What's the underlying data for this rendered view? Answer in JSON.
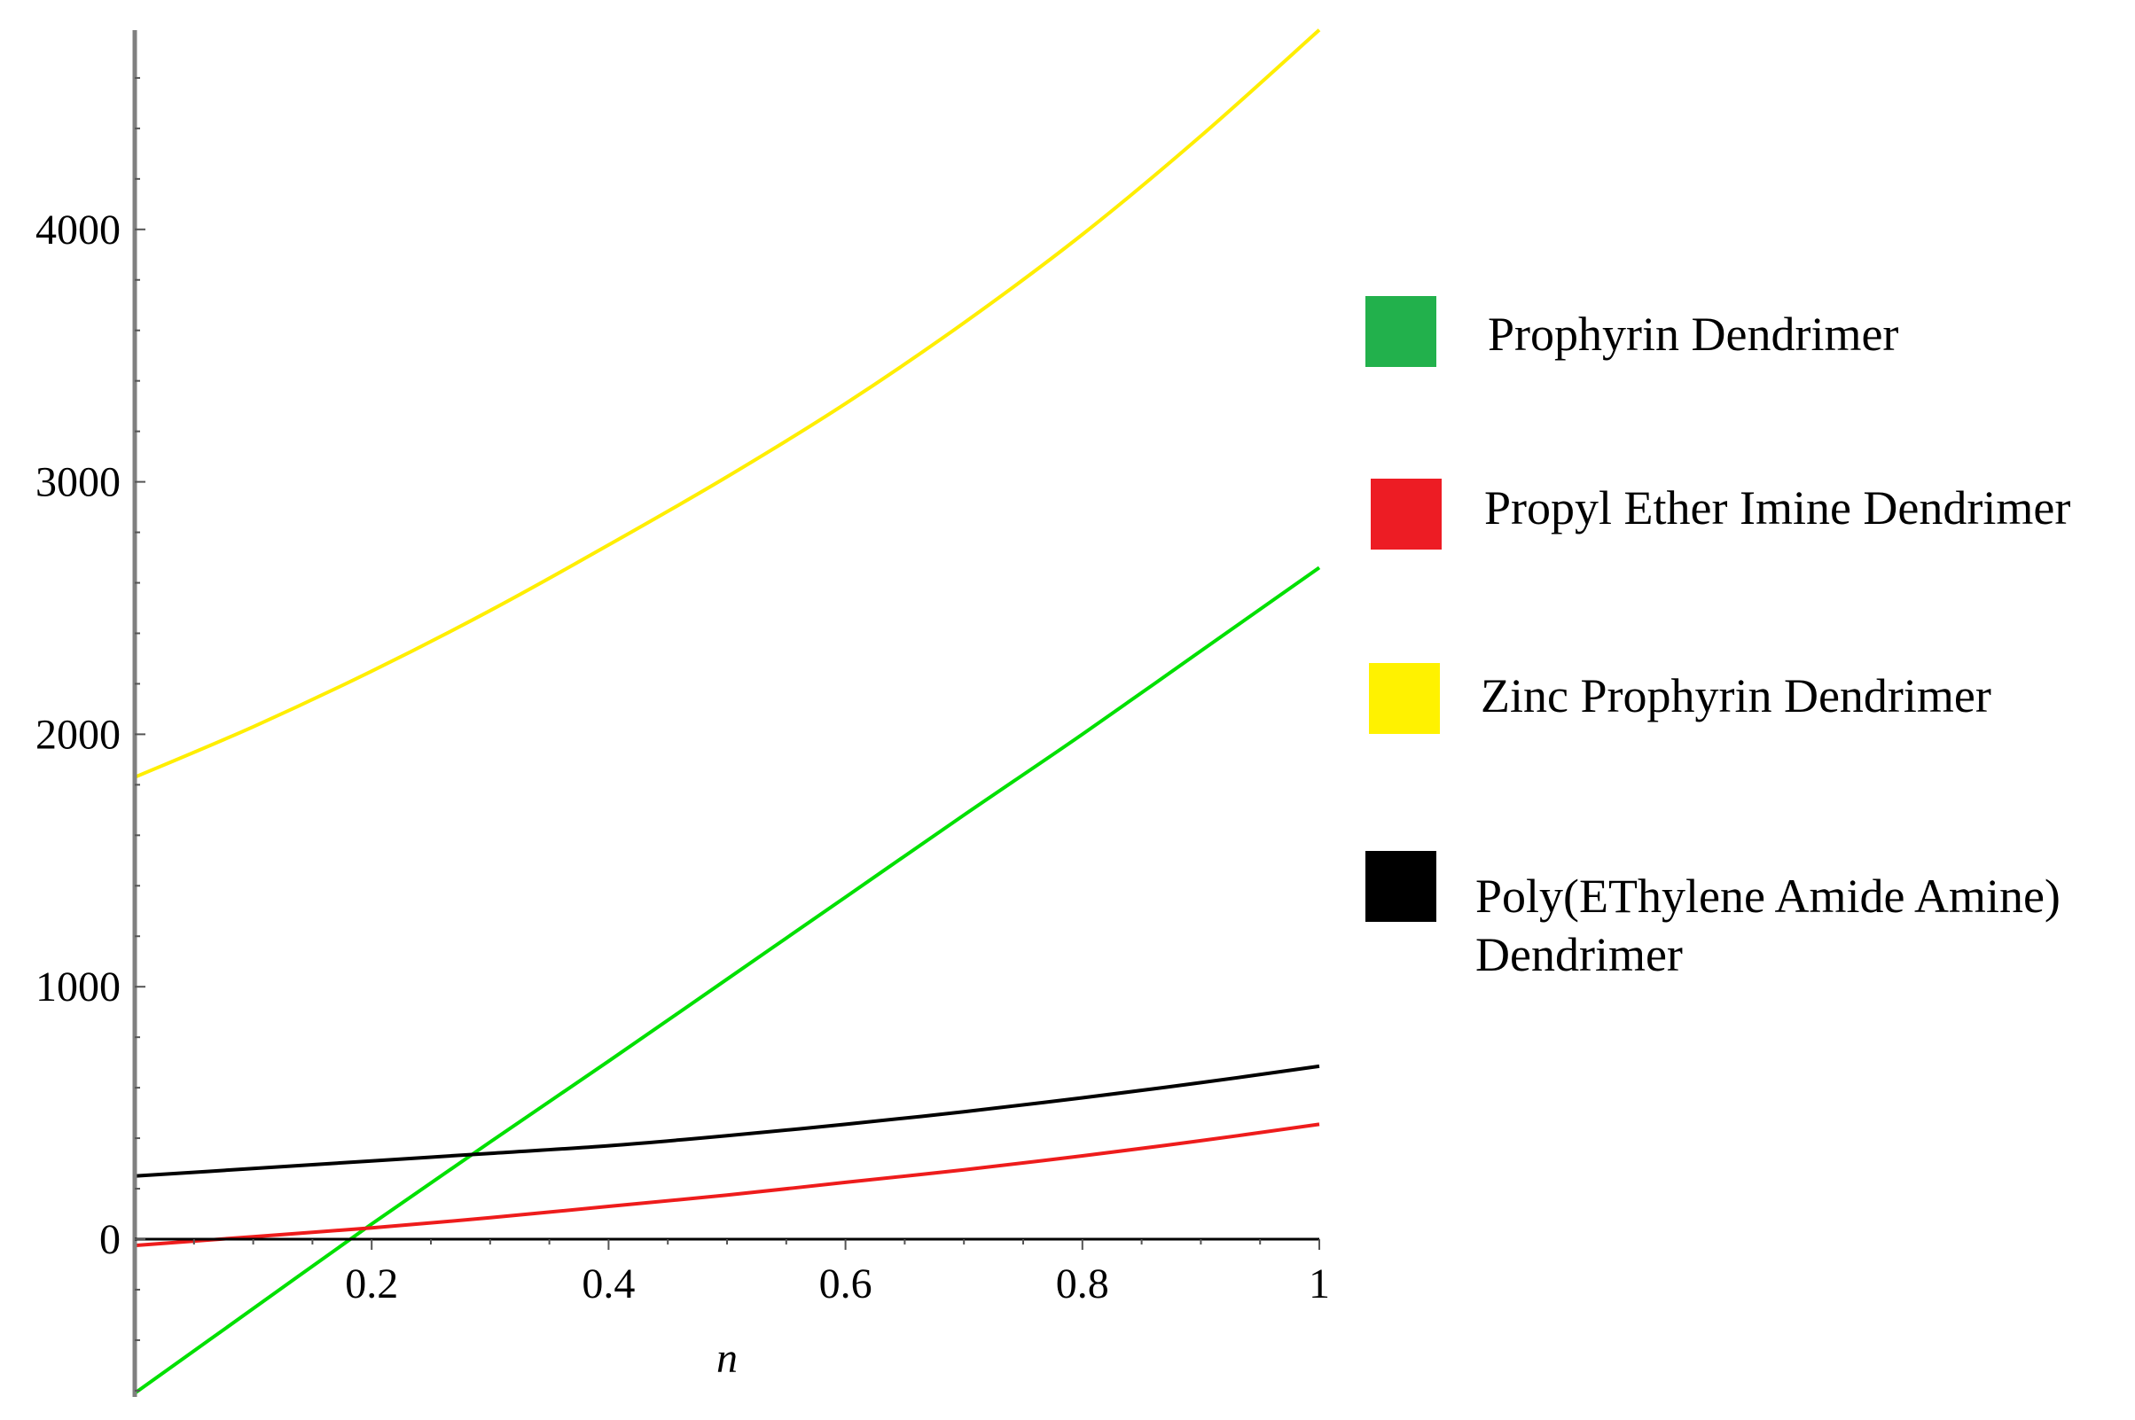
{
  "chart_data": {
    "type": "line",
    "title": "",
    "xlabel": "n",
    "ylabel": "",
    "xlim": [
      0,
      1
    ],
    "ylim": [
      -620,
      4800
    ],
    "x_ticks": [
      "0.2",
      "0.4",
      "0.6",
      "0.8",
      "1"
    ],
    "y_ticks": [
      "0",
      "1000",
      "2000",
      "3000",
      "4000"
    ],
    "grid": false,
    "legend_position": "right",
    "x": [
      0,
      0.1,
      0.2,
      0.3,
      0.4,
      0.5,
      0.6,
      0.7,
      0.8,
      0.9,
      1.0
    ],
    "series": [
      {
        "name": "Prophyrin Dendrimer",
        "color": "#00e000",
        "swatch": "#22b14c",
        "values": [
          -610,
          -275,
          60,
          385,
          705,
          1030,
          1355,
          1680,
          2000,
          2330,
          2660
        ]
      },
      {
        "name": "Propyl Ether Imine Dendrimer",
        "color": "#ee1c1c",
        "swatch": "#ed1c24",
        "values": [
          -25,
          10,
          45,
          85,
          130,
          175,
          225,
          275,
          330,
          390,
          455
        ]
      },
      {
        "name": "Zinc Prophyrin Dendrimer",
        "color": "#ffee00",
        "swatch": "#fff200",
        "values": [
          1830,
          2030,
          2250,
          2490,
          2750,
          3020,
          3310,
          3630,
          3980,
          4370,
          4790
        ]
      },
      {
        "name": "Poly(EThylene Amide Amine) Dendrimer",
        "color": "#000000",
        "swatch": "#000000",
        "values": [
          250,
          280,
          310,
          340,
          370,
          410,
          455,
          505,
          560,
          620,
          685
        ]
      }
    ]
  }
}
